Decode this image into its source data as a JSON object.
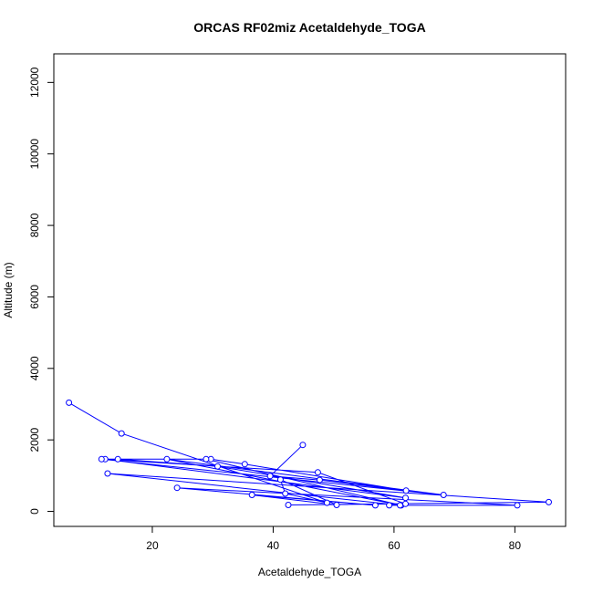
{
  "chart_data": {
    "type": "scatter",
    "title": "ORCAS RF02miz Acetaldehyde_TOGA",
    "xlabel": "Acetaldehyde_TOGA",
    "ylabel": "Altitude (m)",
    "xlim": [
      3.7,
      88.4
    ],
    "ylim": [
      -420,
      12800
    ],
    "xticks": [
      20,
      40,
      60,
      80
    ],
    "yticks": [
      0,
      2000,
      4000,
      6000,
      8000,
      10000,
      12000
    ],
    "grid": false,
    "legend": "none",
    "colors": {
      "series": "#0000ff",
      "axis": "#000000",
      "background": "#ffffff"
    },
    "series": [
      {
        "connect": true,
        "points": [
          [
            44.9,
            1860
          ],
          [
            39.5,
            990
          ],
          [
            47.7,
            880
          ],
          [
            62.0,
            580
          ],
          [
            35.3,
            1320
          ],
          [
            29.7,
            1460
          ],
          [
            12.2,
            1460
          ],
          [
            61.9,
            380
          ],
          [
            30.8,
            1260
          ],
          [
            14.3,
            1460
          ],
          [
            28.9,
            1460
          ],
          [
            61.2,
            170
          ],
          [
            22.4,
            1460
          ],
          [
            68.2,
            460
          ],
          [
            11.6,
            1460
          ],
          [
            47.4,
            1090
          ],
          [
            61.9,
            210
          ],
          [
            42.5,
            180
          ],
          [
            85.6,
            260
          ],
          [
            12.6,
            1060
          ],
          [
            61.0,
            170
          ],
          [
            59.2,
            170
          ],
          [
            80.4,
            170
          ],
          [
            24.1,
            660
          ],
          [
            56.9,
            170
          ],
          [
            36.5,
            460
          ],
          [
            50.5,
            180
          ],
          [
            41.2,
            890
          ],
          [
            42.0,
            500
          ],
          [
            48.9,
            240
          ],
          [
            14.9,
            2180
          ],
          [
            6.2,
            3040
          ]
        ]
      }
    ]
  }
}
